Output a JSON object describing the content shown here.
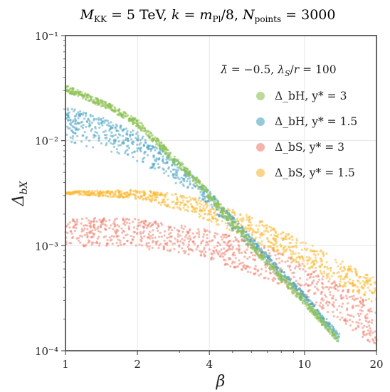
{
  "chart_data": {
    "type": "scatter",
    "title": "M_KK = 5 TeV,  k = m_Pl/8,  N_points = 3000",
    "xlabel": "β",
    "ylabel": "Δ_bX",
    "xscale": "log",
    "yscale": "log",
    "xlim": [
      1,
      20
    ],
    "ylim": [
      0.0001,
      0.1
    ],
    "x_ticks": [
      1,
      2,
      4,
      10,
      20
    ],
    "x_tick_labels": [
      "1",
      "2",
      "4",
      "10",
      "20"
    ],
    "y_ticks": [
      0.0001,
      0.001,
      0.01,
      0.1
    ],
    "y_tick_labels": [
      "10⁻⁴",
      "10⁻³",
      "10⁻²",
      "10⁻¹"
    ],
    "grid": true,
    "legend_title": "λ̄ = −0.5,  λ_S/r = 100",
    "legend_position": "top-right",
    "series": [
      {
        "name": "Δ_bH,  y* = 3",
        "color": "#8cc152",
        "band": [
          {
            "x": 1,
            "y_low": 0.029,
            "y_high": 0.034
          },
          {
            "x": 1.5,
            "y_low": 0.02,
            "y_high": 0.023
          },
          {
            "x": 2,
            "y_low": 0.0135,
            "y_high": 0.016
          },
          {
            "x": 3,
            "y_low": 0.0055,
            "y_high": 0.0065
          },
          {
            "x": 4,
            "y_low": 0.0028,
            "y_high": 0.0034
          },
          {
            "x": 5,
            "y_low": 0.0015,
            "y_high": 0.0018
          },
          {
            "x": 7,
            "y_low": 0.00062,
            "y_high": 0.00075
          },
          {
            "x": 10,
            "y_low": 0.00027,
            "y_high": 0.00032
          },
          {
            "x": 14,
            "y_low": 0.000115,
            "y_high": 0.000135
          }
        ]
      },
      {
        "name": "Δ_bH,  y* = 1.5",
        "color": "#4fa5c2",
        "band": [
          {
            "x": 1,
            "y_low": 0.0098,
            "y_high": 0.021
          },
          {
            "x": 1.5,
            "y_low": 0.0078,
            "y_high": 0.016
          },
          {
            "x": 2,
            "y_low": 0.0062,
            "y_high": 0.012
          },
          {
            "x": 3,
            "y_low": 0.0037,
            "y_high": 0.0062
          },
          {
            "x": 4,
            "y_low": 0.0022,
            "y_high": 0.0033
          },
          {
            "x": 5,
            "y_low": 0.0014,
            "y_high": 0.0019
          },
          {
            "x": 7,
            "y_low": 0.00065,
            "y_high": 0.00083
          },
          {
            "x": 10,
            "y_low": 0.00028,
            "y_high": 0.00035
          },
          {
            "x": 14,
            "y_low": 0.000115,
            "y_high": 0.000145
          }
        ]
      },
      {
        "name": "Δ_bS,  y* = 3",
        "color": "#ee8170",
        "band": [
          {
            "x": 1,
            "y_low": 0.001,
            "y_high": 0.0019
          },
          {
            "x": 2,
            "y_low": 0.00095,
            "y_high": 0.0018
          },
          {
            "x": 3,
            "y_low": 0.00085,
            "y_high": 0.0016
          },
          {
            "x": 4,
            "y_low": 0.00072,
            "y_high": 0.0014
          },
          {
            "x": 6,
            "y_low": 0.00055,
            "y_high": 0.0011
          },
          {
            "x": 8,
            "y_low": 0.00041,
            "y_high": 0.00085
          },
          {
            "x": 10,
            "y_low": 0.00031,
            "y_high": 0.00066
          },
          {
            "x": 14,
            "y_low": 0.00019,
            "y_high": 0.00043
          },
          {
            "x": 20,
            "y_low": 0.00011,
            "y_high": 0.00027
          }
        ]
      },
      {
        "name": "Δ_bS,  y* = 1.5",
        "color": "#f9b933",
        "band": [
          {
            "x": 1,
            "y_low": 0.0031,
            "y_high": 0.0033
          },
          {
            "x": 2,
            "y_low": 0.0028,
            "y_high": 0.0034
          },
          {
            "x": 3,
            "y_low": 0.0022,
            "y_high": 0.0031
          },
          {
            "x": 4,
            "y_low": 0.0017,
            "y_high": 0.0027
          },
          {
            "x": 6,
            "y_low": 0.00115,
            "y_high": 0.0019
          },
          {
            "x": 8,
            "y_low": 0.00082,
            "y_high": 0.0014
          },
          {
            "x": 10,
            "y_low": 0.00063,
            "y_high": 0.0011
          },
          {
            "x": 14,
            "y_low": 0.00042,
            "y_high": 0.00073
          },
          {
            "x": 20,
            "y_low": 0.00028,
            "y_high": 0.00049
          }
        ]
      }
    ]
  }
}
